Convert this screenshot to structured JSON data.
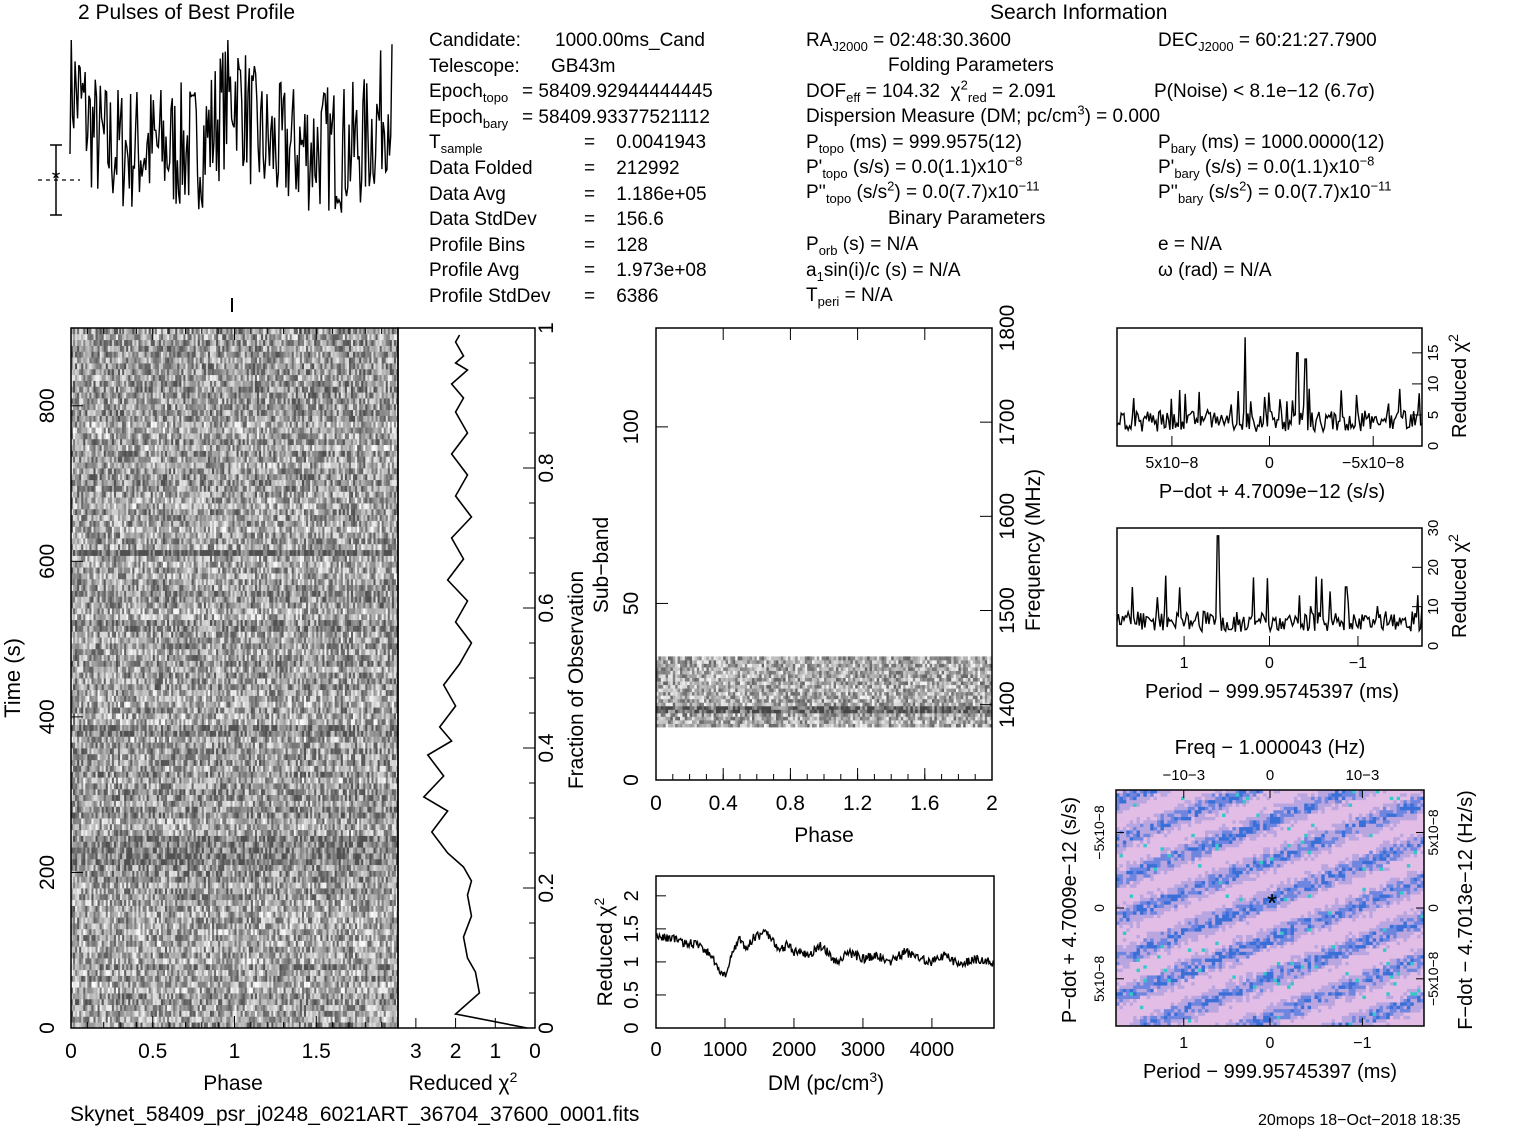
{
  "header": {
    "profile_title": "2 Pulses of Best Profile",
    "search_title": "Search Information"
  },
  "info": {
    "col1": [
      {
        "label": "Candidate:",
        "value": "1000.00ms_Cand"
      },
      {
        "label": "Telescope:",
        "value": "GB43m"
      },
      {
        "label": "Epoch",
        "sub": "topo",
        "value": "= 58409.92944444445"
      },
      {
        "label": "Epoch",
        "sub": "bary",
        "value": "= 58409.93377521112"
      },
      {
        "label": "T",
        "sub": "sample",
        "value": "=    0.0041943"
      },
      {
        "label": "Data Folded",
        "value": "=    212992"
      },
      {
        "label": "Data Avg",
        "value": "=    1.186e+05"
      },
      {
        "label": "Data StdDev",
        "value": "=    156.6"
      },
      {
        "label": "Profile Bins",
        "value": "=    128"
      },
      {
        "label": "Profile Avg",
        "value": "=    1.973e+08"
      },
      {
        "label": "Profile StdDev",
        "value": "=    6386"
      }
    ],
    "ra": "RA",
    "ra_sub": "J2000",
    "ra_value": "= 02:48:30.3600",
    "dec": "DEC",
    "dec_sub": "J2000",
    "dec_value": "= 60:21:27.7900",
    "folding_title": "Folding Parameters",
    "dof": "DOF",
    "dof_sub": "eff",
    "dof_value": "= 104.32",
    "chi": "χ",
    "chi_sub": "red",
    "chi_value": "= 2.091",
    "pnoise": "P(Noise) < 8.1e−12   (6.7σ)",
    "dm_line": "Dispersion Measure (DM; pc/cm",
    "dm_line_end": ") = 0.000",
    "ptopo": "P",
    "ptopo_sub": "topo",
    "ptopo_value": "(ms)  =  999.9575(12)",
    "pbary": "P",
    "pbary_sub": "bary",
    "pbary_value": "(ms)  =  1000.0000(12)",
    "pdtopo_value": "(s/s) = 0.0(1.1)x10",
    "pdtopo_exp": "−8",
    "pdbary_value": "(s/s) = 0.0(1.1)x10",
    "pdbary_exp": "−8",
    "pddtopo_value": "(s/s",
    "pddtopo_rest": ") = 0.0(7.7)x10",
    "pddtopo_exp": "−11",
    "pddbary_value": "(s/s",
    "pddbary_rest": ") = 0.0(7.7)x10",
    "pddbary_exp": "−11",
    "binary_title": "Binary Parameters",
    "porb": "P",
    "porb_sub": "orb",
    "porb_value": "(s) = N/A",
    "e_value": "e = N/A",
    "a1": "a",
    "a1_sub": "1",
    "a1_value": "sin(i)/c (s) = N/A",
    "omega_value": "ω (rad) = N/A",
    "tperi": "T",
    "tperi_sub": "peri",
    "tperi_value": "= N/A"
  },
  "footer": {
    "filename": "Skynet_58409_psr_j0248_6021ART_36704_37600_0001.fits",
    "stamp": "20mops 18−Oct−2018 18:35"
  },
  "chart_data": [
    {
      "name": "profile",
      "type": "line",
      "title": "2 Pulses of Best Profile",
      "note": "two rotations of a noisy pulse profile, 256 bins"
    },
    {
      "name": "time-phase",
      "type": "heatmap",
      "xlabel": "Phase",
      "ylabel": "Time (s)",
      "xlim": [
        0,
        2
      ],
      "ylim": [
        0,
        900
      ],
      "xticks": [
        "0",
        "0.5",
        "1",
        "1.5"
      ],
      "yticks": [
        "0",
        "200",
        "400",
        "600",
        "800"
      ]
    },
    {
      "name": "time-chi2",
      "type": "line",
      "xlabel": "Reduced χ²",
      "ylabel": "Fraction of Observation",
      "xticks": [
        "3",
        "2",
        "1",
        "0"
      ],
      "yticks": [
        "0",
        "0.2",
        "0.4",
        "0.6",
        "0.8",
        "1"
      ],
      "x": [
        0.2,
        2.0,
        1.4,
        1.5,
        1.7,
        1.8,
        1.6,
        1.7,
        1.6,
        1.8,
        2.2,
        2.6,
        2.2,
        2.8,
        2.3,
        2.7,
        2.1,
        2.4,
        2.0,
        2.3,
        1.9,
        1.6,
        2.0,
        1.7,
        2.2,
        1.8,
        2.1,
        1.6,
        2.0,
        1.7,
        2.1,
        1.7,
        2.0,
        1.8,
        2.1,
        1.7,
        2.0,
        1.8,
        2.0,
        1.9
      ],
      "y": [
        0.0,
        0.02,
        0.05,
        0.08,
        0.1,
        0.13,
        0.16,
        0.19,
        0.21,
        0.23,
        0.25,
        0.28,
        0.31,
        0.33,
        0.36,
        0.39,
        0.41,
        0.43,
        0.46,
        0.49,
        0.52,
        0.55,
        0.58,
        0.61,
        0.64,
        0.67,
        0.7,
        0.73,
        0.76,
        0.79,
        0.82,
        0.85,
        0.88,
        0.9,
        0.92,
        0.94,
        0.95,
        0.96,
        0.98,
        0.99
      ]
    },
    {
      "name": "subband-phase",
      "type": "heatmap",
      "xlabel": "Phase",
      "ylabel": "Sub−band",
      "y2label": "Frequency (MHz)",
      "xticks": [
        "0",
        "0.4",
        "0.8",
        "1.2",
        "1.6",
        "2"
      ],
      "yticks": [
        "0",
        "50",
        "100"
      ],
      "y2ticks": [
        "1400",
        "1500",
        "1600",
        "1700",
        "1800"
      ],
      "ylim": [
        0,
        128
      ],
      "filled_subbands": [
        15,
        35
      ]
    },
    {
      "name": "dm-chi2",
      "type": "line",
      "xlabel": "DM (pc/cm³)",
      "ylabel": "Reduced χ²",
      "xlim": [
        0,
        4900
      ],
      "ylim": [
        0,
        2.3
      ],
      "xticks": [
        "0",
        "1000",
        "2000",
        "3000",
        "4000"
      ],
      "yticks": [
        "0",
        "0.5",
        "1",
        "1.5",
        "2"
      ],
      "x": [
        0,
        200,
        400,
        600,
        800,
        900,
        1000,
        1100,
        1200,
        1300,
        1400,
        1500,
        1600,
        1700,
        1800,
        1900,
        2000,
        2200,
        2400,
        2600,
        2800,
        3000,
        3200,
        3400,
        3600,
        3800,
        4000,
        4200,
        4400,
        4600,
        4800,
        4900
      ],
      "values": [
        1.4,
        1.35,
        1.3,
        1.25,
        1.1,
        0.9,
        0.8,
        1.1,
        1.35,
        1.2,
        1.35,
        1.4,
        1.45,
        1.3,
        1.2,
        1.25,
        1.15,
        1.1,
        1.25,
        1.0,
        1.15,
        1.05,
        1.1,
        1.0,
        1.15,
        1.05,
        1.0,
        1.1,
        0.95,
        1.05,
        1.0,
        1.0
      ]
    },
    {
      "name": "pdot-chi2",
      "type": "line",
      "xlabel": "P−dot + 4.7009e−12 (s/s)",
      "ylabel": "Reduced χ²",
      "xticks": [
        "5x10−8",
        "0",
        "−5x10−8"
      ],
      "yticks": [
        "0",
        "5",
        "10",
        "15"
      ],
      "ylim": [
        0,
        19
      ],
      "peaks": [
        {
          "x_frac": 0.42,
          "y": 17.5
        },
        {
          "x_frac": 0.59,
          "y": 15
        },
        {
          "x_frac": 0.62,
          "y": 14
        }
      ]
    },
    {
      "name": "period-chi2",
      "type": "line",
      "xlabel": "Period − 999.95745397 (ms)",
      "ylabel": "Reduced χ²",
      "xticks": [
        "1",
        "0",
        "−1"
      ],
      "yticks": [
        "0",
        "10",
        "20",
        "30"
      ],
      "ylim": [
        0,
        30
      ],
      "peaks": [
        {
          "x_frac": 0.33,
          "y": 28
        },
        {
          "x_frac": 0.05,
          "y": 15
        },
        {
          "x_frac": 0.75,
          "y": 15
        }
      ]
    },
    {
      "name": "period-pdot",
      "type": "heatmap",
      "title": "Freq − 1.000043 (Hz)",
      "xlabel": "Period − 999.95745397 (ms)",
      "ylabel": "P−dot + 4.7009e−12 (s/s)",
      "y2label": "F−dot − 4.7013e−12 (Hz/s)",
      "xticks": [
        "1",
        "0",
        "−1"
      ],
      "x2ticks": [
        "−10−3",
        "0",
        "10−3"
      ],
      "yticks": [
        "5x10−8",
        "0",
        "−5x10−8"
      ],
      "y2ticks": [
        "−5x10−8",
        "0",
        "5x10−8"
      ]
    }
  ]
}
